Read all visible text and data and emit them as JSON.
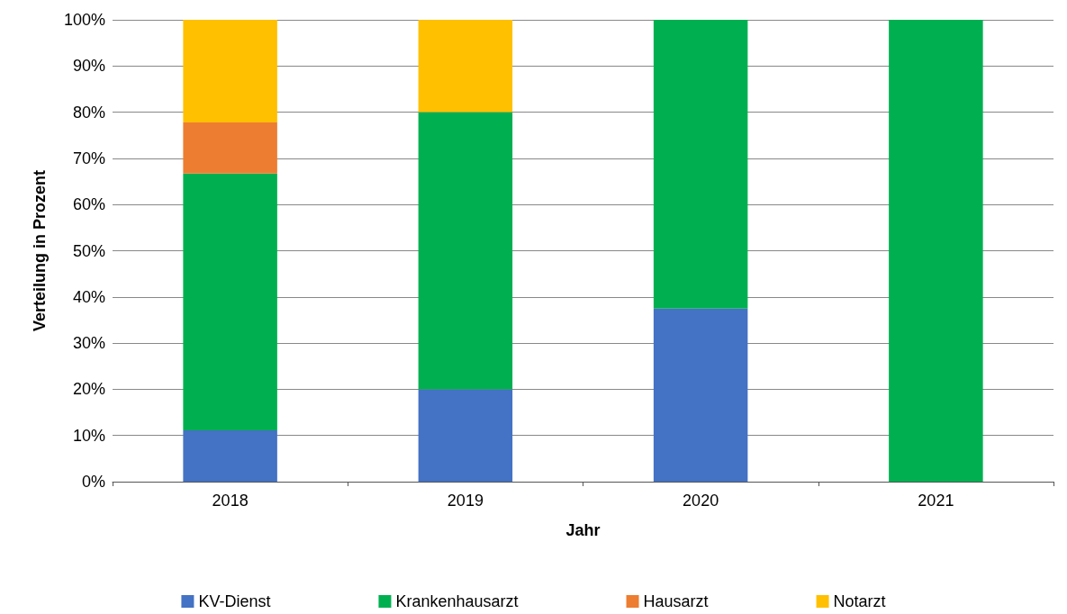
{
  "chart_data": {
    "type": "bar",
    "stacked": true,
    "xlabel": "Jahr",
    "ylabel": "Verteilung in Prozent",
    "categories": [
      "2018",
      "2019",
      "2020",
      "2021"
    ],
    "series": [
      {
        "name": "KV-Dienst",
        "color": "#4472c4",
        "values": [
          11.1,
          20,
          37.5,
          null
        ]
      },
      {
        "name": "Krankenhausarzt",
        "color": "#00b050",
        "values": [
          55.6,
          60,
          62.5,
          100
        ]
      },
      {
        "name": "Hausarzt",
        "color": "#ed7d31",
        "values": [
          11.1,
          null,
          null,
          null
        ]
      },
      {
        "name": "Notarzt",
        "color": "#ffc000",
        "values": [
          22.2,
          20,
          null,
          null
        ]
      }
    ],
    "ylim": [
      0,
      100
    ],
    "yticks": [
      {
        "value": 0,
        "label": "0%"
      },
      {
        "value": 10,
        "label": "10%"
      },
      {
        "value": 20,
        "label": "20%"
      },
      {
        "value": 30,
        "label": "30%"
      },
      {
        "value": 40,
        "label": "40%"
      },
      {
        "value": 50,
        "label": "50%"
      },
      {
        "value": 60,
        "label": "60%"
      },
      {
        "value": 70,
        "label": "70%"
      },
      {
        "value": 80,
        "label": "80%"
      },
      {
        "value": 90,
        "label": "90%"
      },
      {
        "value": 100,
        "label": "100%"
      }
    ],
    "grid": "y",
    "legend": "bottom"
  }
}
